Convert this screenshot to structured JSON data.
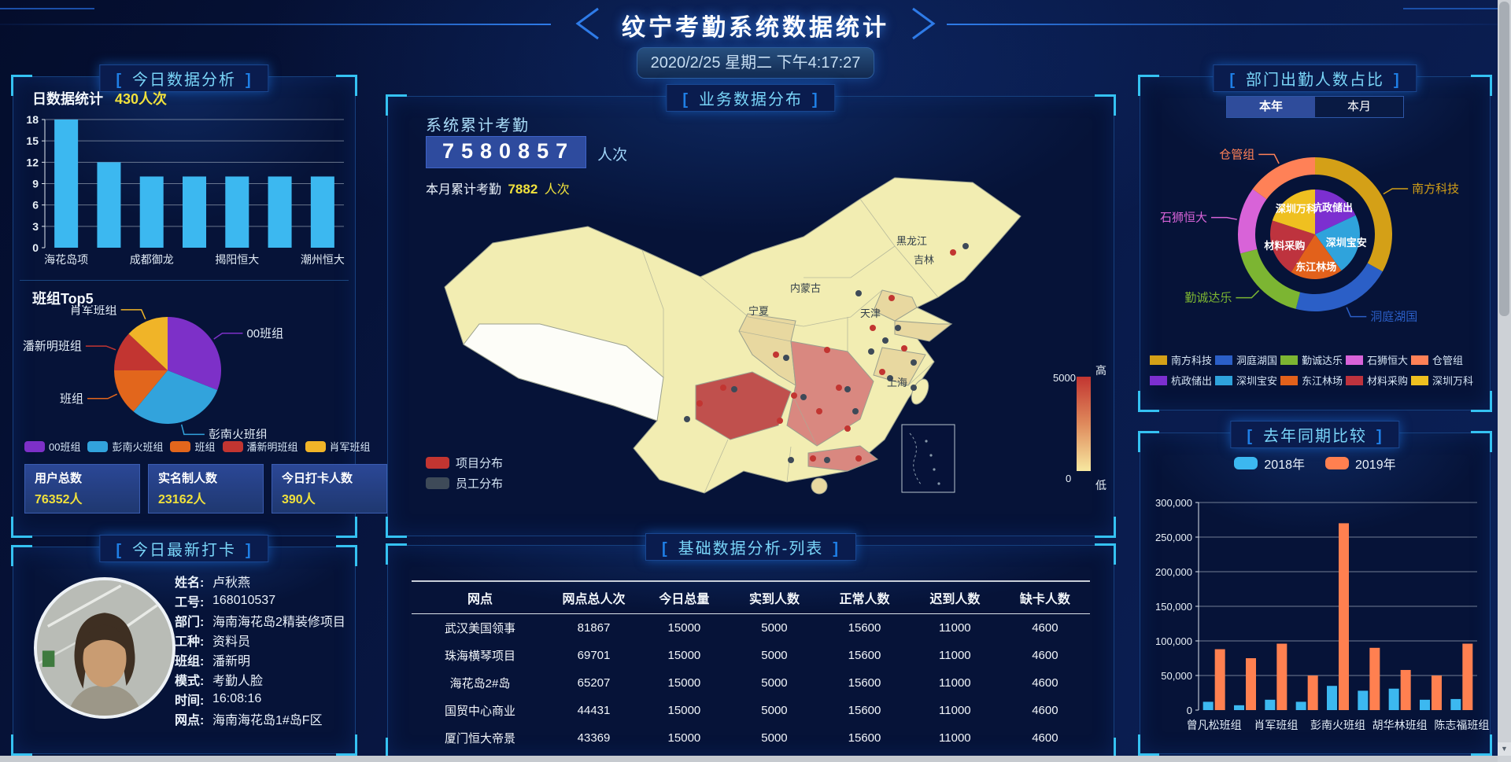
{
  "header": {
    "title": "纹宁考勤系统数据统计",
    "datetime": "2020/2/25 星期二 下午4:17:27"
  },
  "icons": {
    "scroll_down": "▼"
  },
  "panels": {
    "today_analysis": {
      "title": "今日数据分析",
      "daily_label": "日数据统计",
      "daily_value": "430人次",
      "top5_label": "班组Top5",
      "stats": [
        {
          "label": "用户总数",
          "value": "76352人"
        },
        {
          "label": "实名制人数",
          "value": "23162人"
        },
        {
          "label": "今日打卡人数",
          "value": "390人"
        }
      ]
    },
    "latest_checkin": {
      "title": "今日最新打卡",
      "fields": [
        {
          "label": "姓名:",
          "value": "卢秋燕"
        },
        {
          "label": "工号:",
          "value": "168010537"
        },
        {
          "label": "部门:",
          "value": "海南海花岛2精装修项目"
        },
        {
          "label": "工种:",
          "value": "资料员"
        },
        {
          "label": "班组:",
          "value": "潘新明"
        },
        {
          "label": "模式:",
          "value": "考勤人脸"
        },
        {
          "label": "时间:",
          "value": "16:08:16"
        },
        {
          "label": "网点:",
          "value": "海南海花岛1#岛F区"
        }
      ]
    },
    "business_map": {
      "title": "业务数据分布",
      "total_label": "系统累计考勤",
      "total_value": "7580857",
      "total_unit": "人次",
      "month_label": "本月累计考勤",
      "month_value": "7882",
      "month_unit": "人次"
    },
    "base_table": {
      "title": "基础数据分析-列表",
      "headers": [
        "网点",
        "网点总人次",
        "今日总量",
        "实到人数",
        "正常人数",
        "迟到人数",
        "缺卡人数"
      ],
      "rows": [
        [
          "武汉美国领事",
          "81867",
          "15000",
          "5000",
          "15600",
          "11000",
          "4600"
        ],
        [
          "珠海横琴项目",
          "69701",
          "15000",
          "5000",
          "15600",
          "11000",
          "4600"
        ],
        [
          "海花岛2#岛",
          "65207",
          "15000",
          "5000",
          "15600",
          "11000",
          "4600"
        ],
        [
          "国贸中心商业",
          "44431",
          "15000",
          "5000",
          "15600",
          "11000",
          "4600"
        ],
        [
          "厦门恒大帝景",
          "43369",
          "15000",
          "5000",
          "15600",
          "11000",
          "4600"
        ]
      ]
    },
    "dept_ratio": {
      "title": "部门出勤人数占比",
      "tabs": [
        "本年",
        "本月"
      ],
      "active_tab": "本年"
    },
    "year_compare": {
      "title": "去年同期比较"
    }
  },
  "chart_data": [
    {
      "id": "daily_bar",
      "type": "bar",
      "title": "日数据统计 430人次",
      "categories": [
        "海花岛项",
        "",
        "成都御龙",
        "",
        "揭阳恒大",
        "",
        "潮州恒大"
      ],
      "values": [
        18,
        12,
        10,
        10,
        10,
        10,
        10
      ],
      "xlabel": "",
      "ylabel": "",
      "ylim": [
        0,
        18
      ],
      "yticks": [
        0,
        3,
        6,
        9,
        12,
        15,
        18
      ],
      "bar_color": "#3CB8F0",
      "grid": true
    },
    {
      "id": "top5_pie",
      "type": "pie",
      "title": "班组Top5",
      "labels": [
        "00班组",
        "彭南火班组",
        "班组",
        "潘新明班组",
        "肖军班组"
      ],
      "values": [
        31,
        30,
        14,
        12,
        13
      ],
      "colors": [
        "#7D30C8",
        "#32A3DC",
        "#E2661C",
        "#C23531",
        "#F0B428"
      ],
      "legend_position": "bottom"
    },
    {
      "id": "dept_donut",
      "type": "pie",
      "subtype": "two-level-ring",
      "title": "部门出勤人数占比",
      "outer": {
        "labels": [
          "南方科技",
          "洞庭湖国",
          "勤诚达乐",
          "石狮恒大",
          "仓管组"
        ],
        "values": [
          33,
          21,
          17,
          14,
          15
        ],
        "colors": [
          "#D4A017",
          "#2B5FC7",
          "#7CB532",
          "#D863D8",
          "#FF8157"
        ]
      },
      "inner": {
        "labels": [
          "杭政储出",
          "深圳宝安",
          "东江林场",
          "材料采购",
          "深圳万科"
        ],
        "values": [
          18,
          22,
          19,
          21,
          20
        ],
        "colors": [
          "#7C2FD0",
          "#2FA3DC",
          "#E2611B",
          "#BE333E",
          "#EFC020"
        ]
      }
    },
    {
      "id": "year_bar",
      "type": "bar",
      "title": "去年同期比较",
      "categories": [
        "曾凡松班组",
        "",
        "肖军班组",
        "",
        "彭南火班组",
        "",
        "胡华林班组",
        "",
        "陈志福班组"
      ],
      "series": [
        {
          "name": "2018年",
          "color": "#3CB8F0",
          "values": [
            12000,
            7000,
            15000,
            12000,
            35000,
            28000,
            31000,
            15000,
            16000
          ]
        },
        {
          "name": "2019年",
          "color": "#FF8050",
          "values": [
            88000,
            75000,
            96000,
            50000,
            270000,
            90000,
            58000,
            50000,
            96000
          ]
        }
      ],
      "ylim": [
        0,
        300000
      ],
      "yticks": [
        0,
        50000,
        100000,
        150000,
        200000,
        250000,
        300000
      ],
      "legend_position": "top",
      "grid": true
    },
    {
      "id": "china_map",
      "type": "heatmap",
      "title": "业务数据分布",
      "legend": [
        {
          "label": "项目分布",
          "color": "#C23531"
        },
        {
          "label": "员工分布",
          "color": "#3E4A58"
        }
      ],
      "visualmap": {
        "max": "5000",
        "min": "0",
        "high": "高",
        "low": "低",
        "colors": [
          "#F7E8A0",
          "#C23531"
        ]
      },
      "province_labels": [
        "黑龙江",
        "吉林",
        "内蒙古",
        "宁夏",
        "天津",
        "上海"
      ]
    }
  ]
}
